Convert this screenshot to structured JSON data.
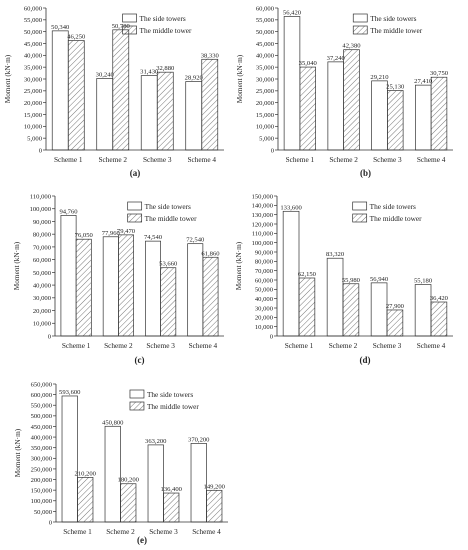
{
  "chart_data": [
    {
      "type": "bar",
      "panel_label": "(a)",
      "categories": [
        "Scheme 1",
        "Scheme 2",
        "Scheme 3",
        "Scheme 4"
      ],
      "series": [
        {
          "name": "The side towers",
          "values": [
            50340,
            30240,
            31430,
            28920
          ],
          "labels": [
            "50,340",
            "30,240",
            "31,430",
            "28,920"
          ]
        },
        {
          "name": "The middle tower",
          "values": [
            46250,
            50780,
            32880,
            38330
          ],
          "labels": [
            "46,250",
            "50,780",
            "32,880",
            "38,330"
          ]
        }
      ],
      "ylabel": "Moment (kN·m)",
      "ylim": [
        0,
        60000
      ],
      "yticks": [
        0,
        5000,
        10000,
        15000,
        20000,
        25000,
        30000,
        35000,
        40000,
        45000,
        50000,
        55000,
        60000
      ],
      "ytick_labels": [
        "0",
        "5,000",
        "10,000",
        "15,000",
        "20,000",
        "25,000",
        "30,000",
        "35,000",
        "40,000",
        "45,000",
        "50,000",
        "55,000",
        "60,000"
      ],
      "legend": "top-right",
      "grid": false
    },
    {
      "type": "bar",
      "panel_label": "(b)",
      "categories": [
        "Scheme 1",
        "Scheme 2",
        "Scheme 3",
        "Scheme 4"
      ],
      "series": [
        {
          "name": "The side towers",
          "values": [
            56420,
            37240,
            29210,
            27410
          ],
          "labels": [
            "56,420",
            "37,240",
            "29,210",
            "27,410"
          ]
        },
        {
          "name": "The middle tower",
          "values": [
            35040,
            42380,
            25130,
            30750
          ],
          "labels": [
            "35,040",
            "42,380",
            "25,130",
            "30,750"
          ]
        }
      ],
      "ylabel": "Moment (kN·m)",
      "ylim": [
        0,
        60000
      ],
      "yticks": [
        0,
        5000,
        10000,
        15000,
        20000,
        25000,
        30000,
        35000,
        40000,
        45000,
        50000,
        55000,
        60000
      ],
      "ytick_labels": [
        "0",
        "5,000",
        "10,000",
        "15,000",
        "20,000",
        "25,000",
        "30,000",
        "35,000",
        "40,000",
        "45,000",
        "50,000",
        "55,000",
        "60,000"
      ],
      "legend": "top-right",
      "grid": false
    },
    {
      "type": "bar",
      "panel_label": "(c)",
      "categories": [
        "Scheme 1",
        "Scheme 2",
        "Scheme 3",
        "Scheme 4"
      ],
      "series": [
        {
          "name": "The side towers",
          "values": [
            94760,
            77960,
            74540,
            72540
          ],
          "labels": [
            "94,760",
            "77,960",
            "74,540",
            "72,540"
          ]
        },
        {
          "name": "The middle tower",
          "values": [
            76050,
            79470,
            53660,
            61860
          ],
          "labels": [
            "76,050",
            "79,470",
            "53,660",
            "61,860"
          ]
        }
      ],
      "ylabel": "Moment (kN·m)",
      "ylim": [
        0,
        110000
      ],
      "yticks": [
        0,
        10000,
        20000,
        30000,
        40000,
        50000,
        60000,
        70000,
        80000,
        90000,
        100000,
        110000
      ],
      "ytick_labels": [
        "0",
        "10,000",
        "20,000",
        "30,000",
        "40,000",
        "50,000",
        "60,000",
        "70,000",
        "80,000",
        "90,000",
        "100,000",
        "110,000"
      ],
      "legend": "top-right",
      "grid": false
    },
    {
      "type": "bar",
      "panel_label": "(d)",
      "categories": [
        "Scheme 1",
        "Scheme 2",
        "Scheme 3",
        "Scheme 4"
      ],
      "series": [
        {
          "name": "The side towers",
          "values": [
            133600,
            83320,
            56940,
            55180
          ],
          "labels": [
            "133,600",
            "83,320",
            "56,940",
            "55,180"
          ]
        },
        {
          "name": "The middle tower",
          "values": [
            62150,
            55980,
            27900,
            36420
          ],
          "labels": [
            "62,150",
            "55,980",
            "27,900",
            "36,420"
          ]
        }
      ],
      "ylabel": "Moment (kN·m)",
      "ylim": [
        0,
        150000
      ],
      "yticks": [
        0,
        10000,
        20000,
        30000,
        40000,
        50000,
        60000,
        70000,
        80000,
        90000,
        100000,
        110000,
        120000,
        130000,
        140000,
        150000
      ],
      "ytick_labels": [
        "0",
        "10,000",
        "20,000",
        "30,000",
        "40,000",
        "50,000",
        "60,000",
        "70,000",
        "80,000",
        "90,000",
        "100,000",
        "110,000",
        "120,000",
        "130,000",
        "140,000",
        "150,000"
      ],
      "legend": "top-right",
      "grid": false
    },
    {
      "type": "bar",
      "panel_label": "(e)",
      "categories": [
        "Scheme 1",
        "Scheme 2",
        "Scheme 3",
        "Scheme 4"
      ],
      "series": [
        {
          "name": "The side towers",
          "values": [
            593600,
            450800,
            363200,
            370200
          ],
          "labels": [
            "593,600",
            "450,800",
            "363,200",
            "370,200"
          ]
        },
        {
          "name": "The middle tower",
          "values": [
            210200,
            180200,
            136400,
            149200
          ],
          "labels": [
            "210,200",
            "180,200",
            "136,400",
            "149,200"
          ]
        }
      ],
      "ylabel": "Moment (kN·m)",
      "ylim": [
        0,
        650000
      ],
      "yticks": [
        0,
        50000,
        100000,
        150000,
        200000,
        250000,
        300000,
        350000,
        400000,
        450000,
        500000,
        550000,
        600000,
        650000
      ],
      "ytick_labels": [
        "0",
        "50,000",
        "100,000",
        "150,000",
        "200,000",
        "250,000",
        "300,000",
        "350,000",
        "400,000",
        "450,000",
        "500,000",
        "550,000",
        "600,000",
        "650,000"
      ],
      "legend": "top-right",
      "grid": false
    }
  ],
  "colors": {
    "side_fill": "#ffffff",
    "middle_hatch": "#555555",
    "axis": "#333333"
  }
}
